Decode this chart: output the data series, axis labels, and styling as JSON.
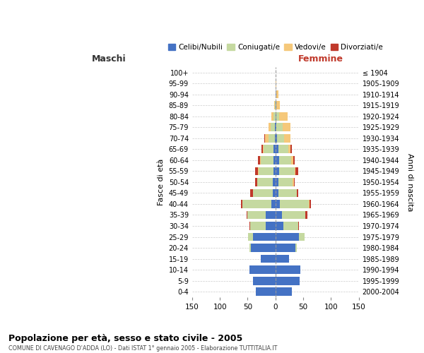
{
  "age_groups": [
    "0-4",
    "5-9",
    "10-14",
    "15-19",
    "20-24",
    "25-29",
    "30-34",
    "35-39",
    "40-44",
    "45-49",
    "50-54",
    "55-59",
    "60-64",
    "65-69",
    "70-74",
    "75-79",
    "80-84",
    "85-89",
    "90-94",
    "95-99",
    "100+"
  ],
  "birth_years": [
    "2000-2004",
    "1995-1999",
    "1990-1994",
    "1985-1989",
    "1980-1984",
    "1975-1979",
    "1970-1974",
    "1965-1969",
    "1960-1964",
    "1955-1959",
    "1950-1954",
    "1945-1949",
    "1940-1944",
    "1935-1939",
    "1930-1934",
    "1925-1929",
    "1920-1924",
    "1915-1919",
    "1910-1914",
    "1905-1909",
    "≤ 1904"
  ],
  "maschi": {
    "celibi": [
      35,
      41,
      47,
      26,
      44,
      40,
      18,
      18,
      7,
      5,
      5,
      4,
      4,
      3,
      1,
      1,
      0,
      0,
      0,
      0,
      0
    ],
    "coniugati": [
      0,
      0,
      0,
      0,
      3,
      9,
      28,
      32,
      53,
      36,
      28,
      26,
      22,
      18,
      11,
      8,
      4,
      1,
      0,
      0,
      0
    ],
    "vedovi": [
      0,
      0,
      0,
      0,
      0,
      0,
      0,
      0,
      0,
      0,
      0,
      1,
      2,
      2,
      7,
      4,
      4,
      1,
      0,
      0,
      0
    ],
    "divorziati": [
      0,
      0,
      0,
      0,
      0,
      0,
      1,
      2,
      2,
      5,
      4,
      5,
      3,
      2,
      1,
      0,
      0,
      0,
      0,
      0,
      0
    ]
  },
  "femmine": {
    "nubili": [
      30,
      43,
      45,
      24,
      36,
      42,
      14,
      12,
      8,
      5,
      5,
      6,
      6,
      5,
      3,
      2,
      1,
      1,
      1,
      0,
      0
    ],
    "coniugate": [
      0,
      0,
      0,
      0,
      3,
      10,
      27,
      42,
      52,
      33,
      26,
      28,
      22,
      18,
      12,
      11,
      6,
      1,
      0,
      0,
      0
    ],
    "vedove": [
      0,
      0,
      0,
      0,
      0,
      0,
      0,
      0,
      1,
      1,
      2,
      2,
      4,
      4,
      12,
      14,
      15,
      6,
      4,
      1,
      0
    ],
    "divorziate": [
      0,
      0,
      0,
      0,
      0,
      0,
      1,
      4,
      3,
      2,
      2,
      5,
      2,
      2,
      0,
      0,
      0,
      0,
      0,
      0,
      0
    ]
  },
  "color_celibi": "#4472c4",
  "color_coniugati": "#c5d9a0",
  "color_vedovi": "#f5c87a",
  "color_divorziati": "#c0392b",
  "title": "Popolazione per età, sesso e stato civile - 2005",
  "subtitle": "COMUNE DI CAVENAGO D'ADDA (LO) - Dati ISTAT 1° gennaio 2005 - Elaborazione TUTTITALIA.IT",
  "ylabel_left": "Fasce di età",
  "ylabel_right": "Anni di nascita",
  "xlim": 150,
  "background": "#ffffff",
  "grid_color": "#cccccc",
  "maschi_label": "Maschi",
  "femmine_label": "Femmine",
  "legend_labels": [
    "Celibi/Nubili",
    "Coniugati/e",
    "Vedovi/e",
    "Divorziati/e"
  ],
  "xticks": [
    -150,
    -100,
    -50,
    0,
    50,
    100,
    150
  ],
  "xtick_labels": [
    "150",
    "100",
    "50",
    "0",
    "50",
    "100",
    "150"
  ]
}
